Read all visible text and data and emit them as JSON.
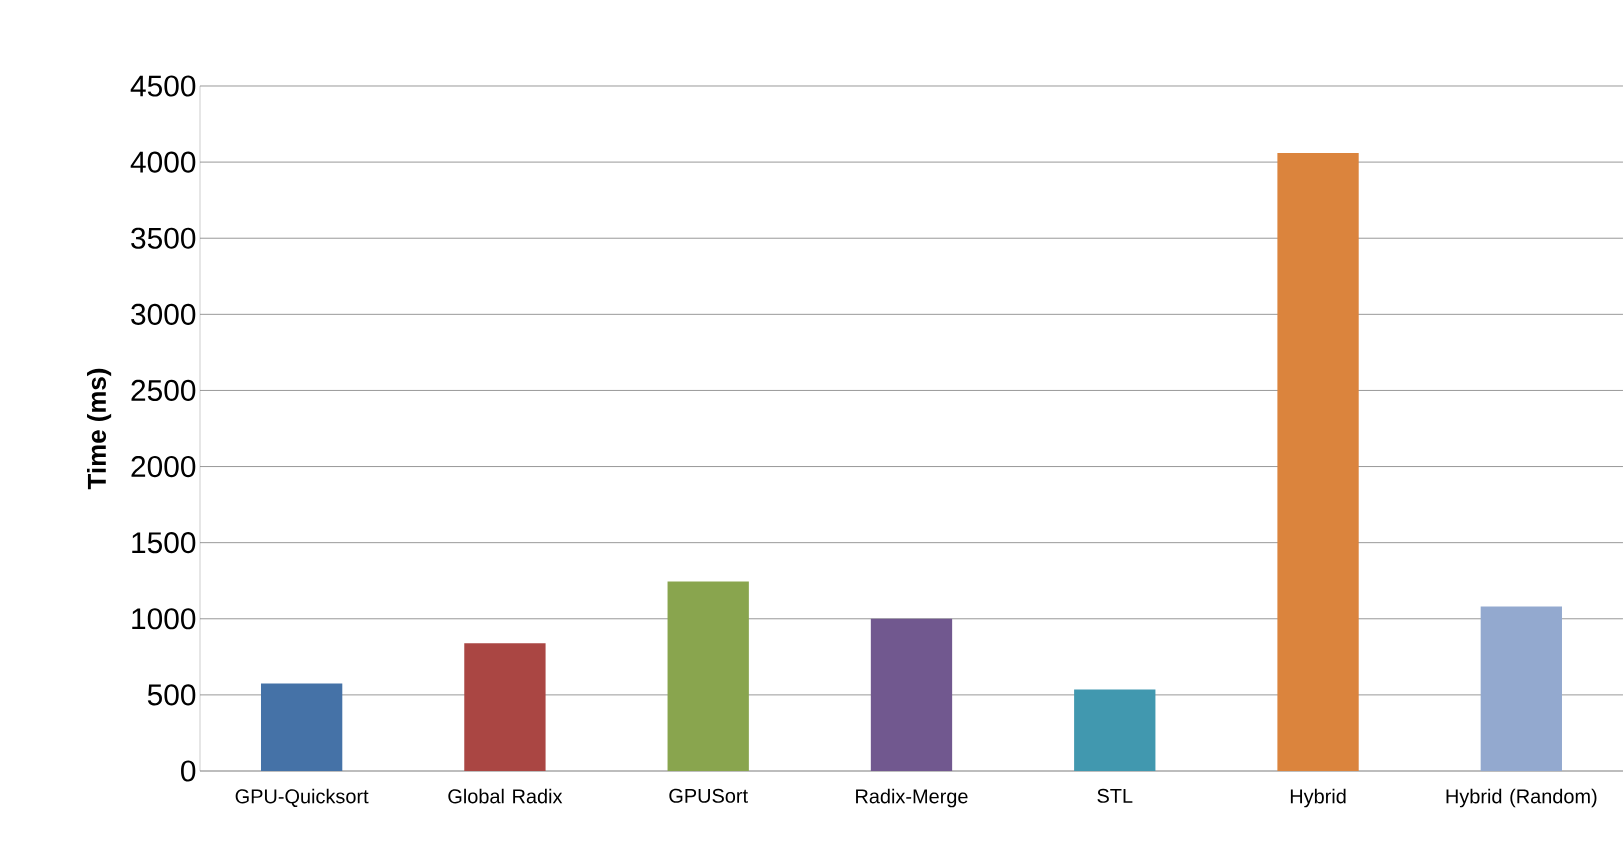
{
  "chart_data": {
    "type": "bar",
    "ylabel": "Time (ms)",
    "categories": [
      "GPU-Quicksort",
      "Global Radix",
      "GPUSort",
      "Radix-Merge",
      "STL",
      "Hybrid",
      "Hybrid (Random)"
    ],
    "values": [
      575,
      840,
      1245,
      1000,
      535,
      4060,
      1080
    ],
    "colors": [
      "#4572a7",
      "#aa4643",
      "#89a54e",
      "#71588f",
      "#4198af",
      "#db843d",
      "#93a9cf"
    ],
    "ylim": [
      0,
      4500
    ],
    "yticks": [
      0,
      500,
      1000,
      1500,
      2000,
      2500,
      3000,
      3500,
      4000,
      4500
    ],
    "grid": "y"
  }
}
